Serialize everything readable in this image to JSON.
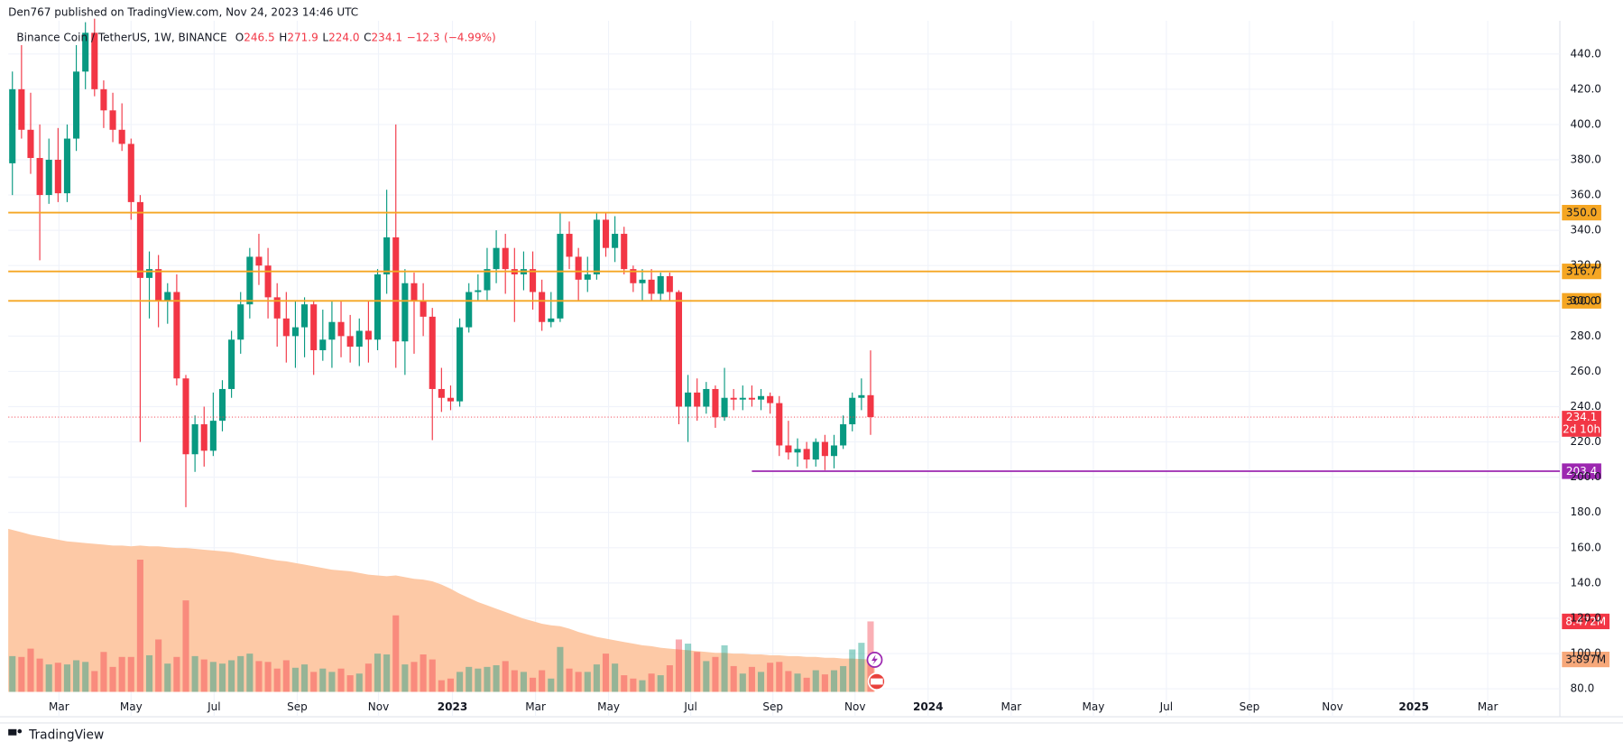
{
  "chart_data": {
    "type": "candlestick",
    "publisher": "Den767 published on TradingView.com, Nov 24, 2023 14:46 UTC",
    "title": "Binance Coin / TetherUS, 1W, BINANCE",
    "legend_prefixes": [
      "O",
      "H",
      "L",
      "C"
    ],
    "legend_values": [
      {
        "value": 246.5,
        "label": "246.5"
      },
      {
        "value": 271.9,
        "label": "271.9"
      },
      {
        "value": 224,
        "label": "224.0"
      },
      {
        "value": 234.1,
        "label": "234.1"
      }
    ],
    "change": {
      "value": -12.3,
      "label": "−12.3"
    },
    "change_pct": {
      "value": -4.99,
      "label": "(−4.99%)"
    },
    "up_color": "#089981",
    "down_color": "#f23645",
    "open": [
      378,
      420,
      397,
      381,
      360,
      380,
      361,
      392,
      430,
      452,
      420,
      408,
      397,
      389,
      356,
      313,
      318,
      300,
      305,
      256,
      213,
      230,
      215,
      232,
      250,
      278,
      298,
      325,
      320,
      302,
      290,
      280,
      285,
      298,
      272,
      278,
      288,
      280,
      274,
      283,
      278,
      315,
      336,
      277,
      310,
      300,
      291,
      250,
      245,
      243,
      285,
      305,
      306,
      318,
      330,
      318,
      315,
      318,
      305,
      288,
      290,
      338,
      325,
      312,
      315,
      346,
      330,
      338,
      318,
      310,
      312,
      304,
      314,
      305,
      240,
      248,
      240,
      250,
      234,
      245,
      244,
      245,
      244,
      246,
      242,
      218,
      214,
      216,
      210,
      220,
      212,
      218,
      230,
      245,
      246.5
    ],
    "high": [
      430,
      445,
      418,
      400,
      392,
      398,
      400,
      445,
      458,
      460,
      425,
      418,
      412,
      392,
      360,
      328,
      326,
      310,
      315,
      258,
      235,
      240,
      248,
      255,
      283,
      305,
      330,
      338,
      330,
      310,
      305,
      300,
      302,
      300,
      295,
      300,
      300,
      292,
      290,
      300,
      318,
      363,
      400,
      318,
      316,
      310,
      296,
      262,
      252,
      290,
      310,
      315,
      330,
      340,
      338,
      330,
      328,
      328,
      312,
      305,
      350,
      345,
      330,
      325,
      350,
      350,
      348,
      342,
      320,
      318,
      318,
      316,
      316,
      306,
      258,
      256,
      254,
      252,
      262,
      250,
      252,
      252,
      250,
      248,
      246,
      232,
      222,
      220,
      222,
      224,
      224,
      235,
      248,
      256,
      271.9
    ],
    "low": [
      360,
      392,
      372,
      323,
      355,
      356,
      356,
      385,
      420,
      416,
      398,
      390,
      385,
      346,
      220,
      290,
      285,
      287,
      252,
      183,
      203,
      206,
      212,
      226,
      245,
      270,
      290,
      309,
      290,
      274,
      265,
      262,
      268,
      258,
      266,
      262,
      268,
      265,
      263,
      265,
      272,
      304,
      262,
      258,
      270,
      280,
      221,
      237,
      238,
      240,
      282,
      300,
      300,
      310,
      304,
      288,
      306,
      295,
      283,
      285,
      288,
      318,
      300,
      305,
      312,
      325,
      322,
      315,
      305,
      300,
      300,
      300,
      300,
      230,
      220,
      232,
      236,
      228,
      232,
      238,
      238,
      240,
      238,
      236,
      212,
      210,
      206,
      205,
      206,
      204,
      205,
      216,
      226,
      238,
      224
    ],
    "close": [
      420,
      397,
      381,
      360,
      380,
      361,
      392,
      430,
      452,
      420,
      408,
      397,
      389,
      356,
      313,
      318,
      300,
      305,
      256,
      213,
      230,
      215,
      232,
      250,
      278,
      298,
      325,
      320,
      302,
      290,
      280,
      285,
      298,
      272,
      278,
      288,
      280,
      274,
      283,
      278,
      315,
      336,
      277,
      310,
      300,
      291,
      250,
      245,
      243,
      285,
      305,
      306,
      318,
      330,
      318,
      315,
      318,
      305,
      288,
      290,
      338,
      325,
      312,
      315,
      346,
      330,
      338,
      318,
      310,
      312,
      304,
      314,
      305,
      240,
      248,
      240,
      250,
      234,
      245,
      244,
      245,
      244,
      246,
      242,
      218,
      214,
      216,
      210,
      220,
      212,
      218,
      230,
      245,
      246.5,
      234.1
    ],
    "volume": {
      "axis": "y2",
      "last_label": "8.472M",
      "values": [
        4.3,
        4.2,
        5.2,
        4.0,
        3.3,
        3.5,
        3.3,
        3.8,
        3.6,
        2.5,
        4.8,
        3.0,
        4.2,
        4.2,
        15.9,
        4.4,
        6.3,
        3.4,
        4.2,
        11.0,
        4.3,
        3.9,
        3.6,
        3.4,
        3.8,
        4.3,
        4.6,
        3.7,
        3.6,
        2.8,
        3.8,
        2.9,
        3.3,
        2.4,
        2.8,
        2.4,
        2.8,
        2.0,
        2.2,
        3.4,
        4.6,
        4.5,
        9.2,
        3.3,
        3.6,
        4.5,
        3.9,
        1.4,
        1.6,
        2.4,
        3.0,
        2.8,
        3.0,
        3.2,
        3.7,
        2.6,
        2.4,
        1.7,
        2.6,
        1.6,
        5.4,
        2.8,
        2.4,
        2.4,
        3.3,
        4.6,
        3.4,
        2.0,
        1.6,
        1.4,
        2.2,
        2.0,
        3.2,
        6.3,
        5.8,
        4.8,
        3.7,
        4.2,
        5.6,
        3.1,
        2.2,
        3.0,
        2.4,
        3.5,
        3.6,
        2.5,
        2.2,
        1.7,
        2.6,
        2.1,
        2.6,
        3.1,
        5.1,
        5.9,
        8.472
      ]
    },
    "volume_ma": {
      "axis": "y2",
      "color": "#fdc9a6",
      "last_label": "3.897M",
      "values": [
        19.6,
        19.2,
        18.9,
        18.7,
        18.5,
        18.3,
        18.1,
        18.0,
        17.9,
        17.8,
        17.7,
        17.6,
        17.6,
        17.5,
        17.6,
        17.5,
        17.5,
        17.4,
        17.3,
        17.3,
        17.2,
        17.1,
        17.0,
        16.9,
        16.8,
        16.6,
        16.4,
        16.2,
        16.0,
        15.8,
        15.7,
        15.5,
        15.3,
        15.1,
        14.9,
        14.7,
        14.6,
        14.5,
        14.3,
        14.1,
        14.0,
        13.9,
        14.0,
        13.8,
        13.6,
        13.5,
        13.3,
        12.9,
        12.4,
        11.8,
        11.3,
        10.8,
        10.4,
        10.0,
        9.6,
        9.2,
        8.8,
        8.5,
        8.2,
        8.0,
        7.9,
        7.6,
        7.2,
        6.9,
        6.6,
        6.4,
        6.2,
        6.0,
        5.8,
        5.6,
        5.5,
        5.3,
        5.2,
        5.1,
        5.0,
        4.9,
        4.8,
        4.7,
        4.7,
        4.6,
        4.6,
        4.5,
        4.5,
        4.4,
        4.4,
        4.3,
        4.3,
        4.2,
        4.2,
        4.1,
        4.1,
        4.0,
        4.0,
        3.95,
        3.897
      ]
    },
    "levels": [
      {
        "value": 350,
        "label": "350.0",
        "color": "#f5a623"
      },
      {
        "value": 316.7,
        "label": "316.7",
        "color": "#f5a623"
      },
      {
        "value": 300,
        "label": "300.0",
        "color": "#f5a623"
      }
    ],
    "support": {
      "value": 203.4,
      "label": "203.4",
      "color": "#9c27b0",
      "from": 81
    },
    "price_label": "234.1",
    "countdown": "2d 10h",
    "xlim": [
      -0.45,
      169.5
    ],
    "ylim": [
      75.9,
      458.8
    ],
    "y2lim": [
      -0.5,
      80.7
    ],
    "grid": true,
    "yticks": [
      {
        "value": 80,
        "label": "80.0"
      },
      {
        "value": 100,
        "label": "100.0"
      },
      {
        "value": 120,
        "label": "120.0"
      },
      {
        "value": 140,
        "label": "140.0"
      },
      {
        "value": 160,
        "label": "160.0"
      },
      {
        "value": 180,
        "label": "180.0"
      },
      {
        "value": 200,
        "label": "200.0"
      },
      {
        "value": 220,
        "label": "220.0"
      },
      {
        "value": 240,
        "label": "240.0"
      },
      {
        "value": 260,
        "label": "260.0"
      },
      {
        "value": 280,
        "label": "280.0"
      },
      {
        "value": 300,
        "label": "300.0"
      },
      {
        "value": 320,
        "label": "320.0"
      },
      {
        "value": 340,
        "label": "340.0"
      },
      {
        "value": 360,
        "label": "360.0"
      },
      {
        "value": 380,
        "label": "380.0"
      },
      {
        "value": 400,
        "label": "400.0"
      },
      {
        "value": 420,
        "label": "420.0"
      },
      {
        "value": 440,
        "label": "440.0"
      }
    ],
    "xticks": [
      {
        "value": 5.1,
        "label": "Mar"
      },
      {
        "value": 13.0,
        "label": "May"
      },
      {
        "value": 22.1,
        "label": "Jul"
      },
      {
        "value": 31.2,
        "label": "Sep"
      },
      {
        "value": 40.1,
        "label": "Nov"
      },
      {
        "value": 48.2,
        "label": "2023"
      },
      {
        "value": 57.3,
        "label": "Mar"
      },
      {
        "value": 65.3,
        "label": "May"
      },
      {
        "value": 74.3,
        "label": "Jul"
      },
      {
        "value": 83.3,
        "label": "Sep"
      },
      {
        "value": 92.3,
        "label": "Nov"
      },
      {
        "value": 100.3,
        "label": "2024"
      },
      {
        "value": 109.4,
        "label": "Mar"
      },
      {
        "value": 118.4,
        "label": "May"
      },
      {
        "value": 126.4,
        "label": "Jul"
      },
      {
        "value": 135.5,
        "label": "Sep"
      },
      {
        "value": 144.6,
        "label": "Nov"
      },
      {
        "value": 153.5,
        "label": "2025"
      },
      {
        "value": 161.6,
        "label": "Mar"
      }
    ],
    "footer": "TradingView"
  }
}
